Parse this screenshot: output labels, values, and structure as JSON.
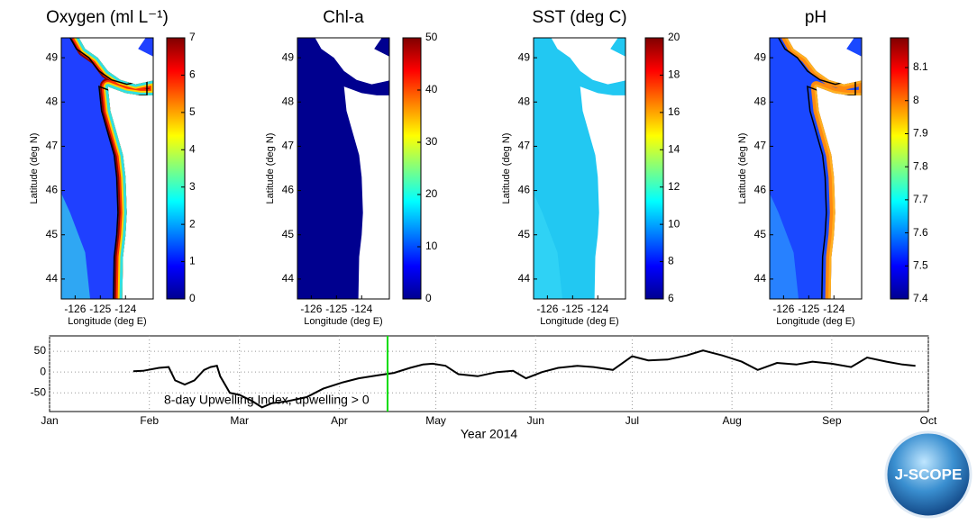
{
  "chart_data": [
    {
      "type": "map",
      "title": "Oxygen (ml L⁻¹)",
      "xlabel": "Longitude (deg E)",
      "ylabel": "Latitude (deg N)",
      "xlim": [
        -126.55,
        -122.9
      ],
      "xticks": [
        -126,
        -125,
        -124
      ],
      "ylim": [
        43.55,
        49.45
      ],
      "yticks": [
        44,
        45,
        46,
        47,
        48,
        49
      ],
      "colorbar_lim": [
        0,
        7
      ],
      "colorbar_ticks": [
        0,
        1,
        2,
        3,
        4,
        5,
        6,
        7
      ]
    },
    {
      "type": "map",
      "title": "Chl-a",
      "xlabel": "Longitude (deg E)",
      "ylabel": "Latitude (deg N)",
      "xlim": [
        -126.55,
        -122.9
      ],
      "xticks": [
        -126,
        -125,
        -124
      ],
      "ylim": [
        43.55,
        49.45
      ],
      "yticks": [
        44,
        45,
        46,
        47,
        48,
        49
      ],
      "colorbar_lim": [
        0,
        50
      ],
      "colorbar_ticks": [
        0,
        10,
        20,
        30,
        40,
        50
      ]
    },
    {
      "type": "map",
      "title": "SST (deg C)",
      "xlabel": "Longitude (deg E)",
      "ylabel": "Latitude (deg N)",
      "xlim": [
        -126.55,
        -122.9
      ],
      "xticks": [
        -126,
        -125,
        -124
      ],
      "ylim": [
        43.55,
        49.45
      ],
      "yticks": [
        44,
        45,
        46,
        47,
        48,
        49
      ],
      "colorbar_lim": [
        6,
        20
      ],
      "colorbar_ticks": [
        6,
        8,
        10,
        12,
        14,
        16,
        18,
        20
      ]
    },
    {
      "type": "map",
      "title": "pH",
      "xlabel": "Longitude (deg E)",
      "ylabel": "Latitude (deg N)",
      "xlim": [
        -126.55,
        -122.9
      ],
      "xticks": [
        -126,
        -125,
        -124
      ],
      "ylim": [
        43.55,
        49.45
      ],
      "yticks": [
        44,
        45,
        46,
        47,
        48,
        49
      ],
      "colorbar_lim": [
        7.4,
        8.19
      ],
      "colorbar_ticks": [
        7.4,
        7.5,
        7.6,
        7.7,
        7.8,
        7.9,
        8,
        8.1
      ]
    },
    {
      "type": "line",
      "xlabel": "Year 2014",
      "annotation": "8-day Upwelling Index, upwelling > 0",
      "xlim": [
        1,
        274
      ],
      "xticks": [
        {
          "value": 1,
          "label": "Jan"
        },
        {
          "value": 32,
          "label": "Feb"
        },
        {
          "value": 60,
          "label": "Mar"
        },
        {
          "value": 91,
          "label": "Apr"
        },
        {
          "value": 121,
          "label": "May"
        },
        {
          "value": 152,
          "label": "Jun"
        },
        {
          "value": 182,
          "label": "Jul"
        },
        {
          "value": 213,
          "label": "Aug"
        },
        {
          "value": 244,
          "label": "Sep"
        },
        {
          "value": 274,
          "label": "Oct"
        }
      ],
      "ylim": [
        -95,
        87
      ],
      "yticks": [
        -50,
        0,
        50
      ],
      "grid": true,
      "color": "#000000",
      "x": [
        27,
        30,
        35,
        38,
        40,
        43,
        46,
        49,
        51,
        53,
        54,
        57,
        60,
        64,
        67,
        70,
        75,
        81,
        86,
        92,
        97,
        103,
        108,
        113,
        117,
        120,
        124,
        128,
        134,
        140,
        145,
        149,
        154,
        159,
        165,
        170,
        176,
        182,
        187,
        193,
        199,
        204,
        210,
        216,
        221,
        227,
        233,
        238,
        244,
        250,
        255,
        261,
        266,
        270
      ],
      "values": [
        2,
        3,
        10,
        12,
        -20,
        -30,
        -20,
        5,
        12,
        15,
        -10,
        -50,
        -55,
        -70,
        -85,
        -75,
        -70,
        -60,
        -40,
        -25,
        -15,
        -8,
        -2,
        10,
        18,
        20,
        15,
        -5,
        -10,
        0,
        3,
        -15,
        0,
        10,
        15,
        12,
        5,
        38,
        28,
        30,
        40,
        52,
        40,
        25,
        5,
        22,
        18,
        25,
        20,
        12,
        35,
        25,
        18,
        15
      ],
      "marker_x": 106,
      "marker_color": "#00dd00"
    }
  ],
  "logo": "J-SCOPE"
}
